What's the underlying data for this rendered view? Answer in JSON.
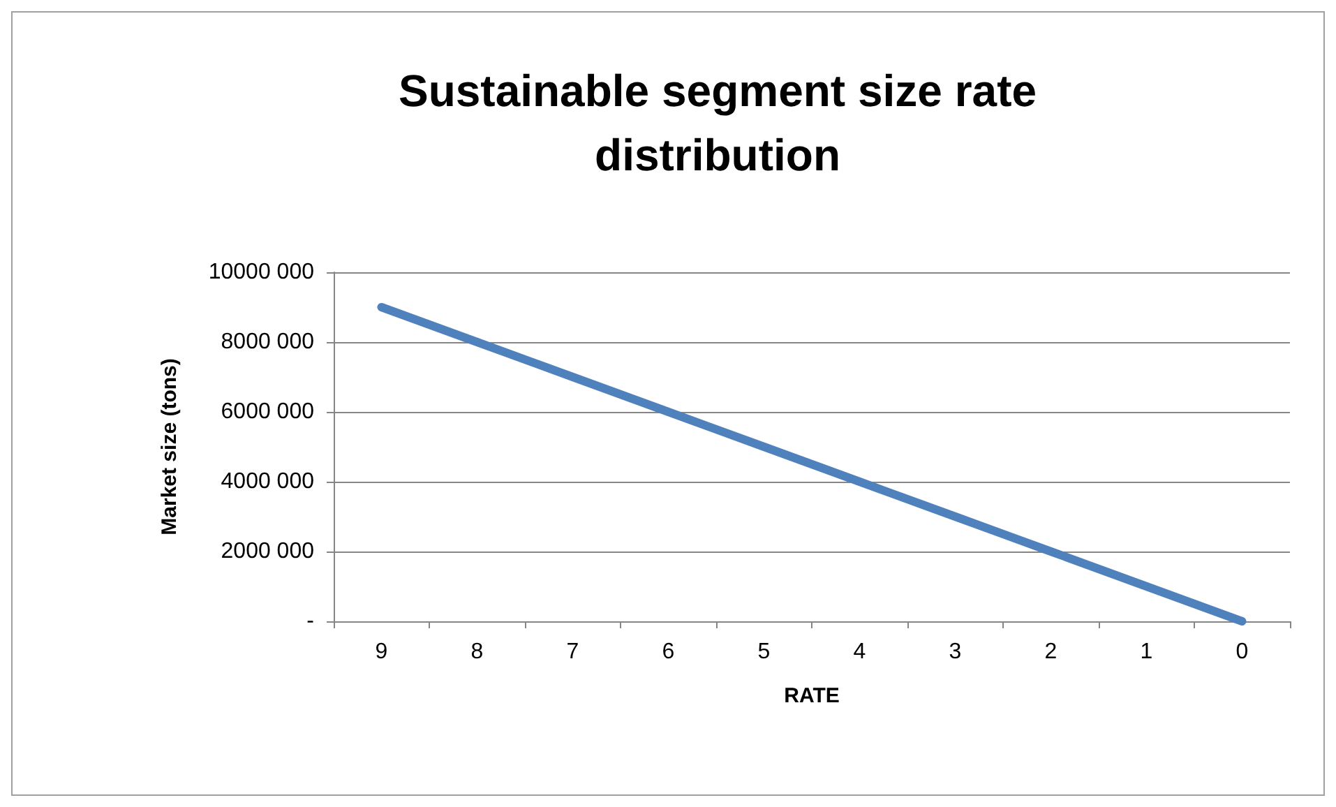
{
  "chart_data": {
    "type": "line",
    "title": "Sustainable segment size rate\ndistribution",
    "xlabel": "RATE",
    "ylabel": "Market size (tons)",
    "categories": [
      "9",
      "8",
      "7",
      "6",
      "5",
      "4",
      "3",
      "2",
      "1",
      "0"
    ],
    "series": [
      {
        "color": "#4f81bd",
        "values": [
          9000000,
          8000000,
          7000000,
          6000000,
          5000000,
          4000000,
          3000000,
          2000000,
          1000000,
          0
        ]
      }
    ],
    "ylim": [
      0,
      10000000
    ],
    "yticks": [
      {
        "value": 0,
        "label": "-"
      },
      {
        "value": 2000000,
        "label": "2000 000"
      },
      {
        "value": 4000000,
        "label": "4000 000"
      },
      {
        "value": 6000000,
        "label": "6000 000"
      },
      {
        "value": 8000000,
        "label": "8000 000"
      },
      {
        "value": 10000000,
        "label": "10000 000"
      }
    ],
    "grid": "y",
    "marker": "none",
    "line_style": "solid"
  }
}
